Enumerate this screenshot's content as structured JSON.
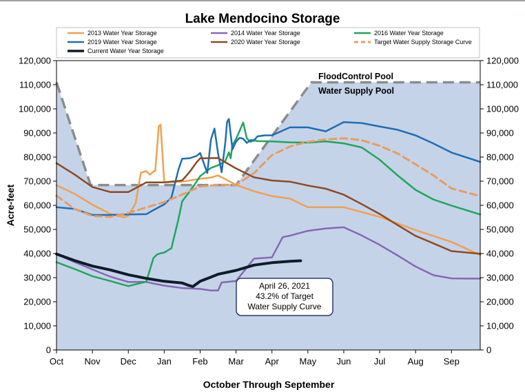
{
  "chart_data": {
    "type": "line",
    "title": "Lake Mendocino Storage",
    "xlabel": "October Through September",
    "ylabel": "Acre-feet",
    "x_categories": [
      "Oct",
      "Nov",
      "Dec",
      "Jan",
      "Feb",
      "Mar",
      "Apr",
      "May",
      "Jun",
      "Jul",
      "Aug",
      "Sep"
    ],
    "x_range_months": [
      0,
      11.8
    ],
    "ylim": [
      0,
      120000
    ],
    "yticks": [
      0,
      10000,
      20000,
      30000,
      40000,
      50000,
      60000,
      70000,
      80000,
      90000,
      100000,
      110000,
      120000
    ],
    "ytick_labels": [
      "0",
      "10,000",
      "20,000",
      "30,000",
      "40,000",
      "50,000",
      "60,000",
      "70,000",
      "80,000",
      "90,000",
      "100,000",
      "110,000",
      "120,000"
    ],
    "secondary_y_axis": true,
    "grid": false,
    "legend_position": "top",
    "pool_labels": {
      "flood_control": "FloodControl Pool",
      "water_supply": "Water Supply Pool"
    },
    "pool": {
      "fill_color": "#c5d3e8",
      "x_months": [
        0,
        0.95,
        5.0,
        7.1,
        11.8
      ],
      "y": [
        111000,
        68400,
        68400,
        111000,
        111000
      ]
    },
    "annotation": {
      "lines": [
        "April 26, 2021",
        "43.2% of Target",
        "Water Supply Curve"
      ]
    },
    "series": [
      {
        "name": "2013 Water Year Storage",
        "color": "#f0a050",
        "dash": false,
        "width": 2.5,
        "x_months": [
          0,
          0.5,
          1,
          1.5,
          1.8,
          1.9,
          2,
          2.2,
          2.35,
          2.5,
          2.6,
          2.7,
          2.75,
          2.85,
          2.9,
          3,
          3.5,
          4,
          4.3,
          4.5,
          5,
          5.5,
          6,
          6.5,
          7,
          8,
          8.5,
          9,
          10,
          11,
          11.8
        ],
        "y": [
          68300,
          64800,
          60300,
          56400,
          55300,
          55000,
          55700,
          60700,
          73500,
          74200,
          72700,
          74000,
          74300,
          92800,
          93500,
          69500,
          69800,
          71000,
          71500,
          72400,
          68500,
          65800,
          63800,
          62800,
          59200,
          59200,
          57200,
          55200,
          49700,
          44800,
          39400
        ]
      },
      {
        "name": "2014 Water Year Storage",
        "color": "#8567b5",
        "dash": false,
        "width": 2.5,
        "x_months": [
          0,
          0.5,
          1,
          1.5,
          2,
          2.5,
          3,
          3.5,
          4,
          4.3,
          4.5,
          4.6,
          5,
          5.5,
          6,
          6.3,
          6.5,
          7,
          7.5,
          8,
          8.5,
          9,
          9.5,
          10,
          10.5,
          11,
          11.5,
          11.8
        ],
        "y": [
          39800,
          36500,
          33400,
          30400,
          28200,
          28200,
          26700,
          25700,
          25300,
          24700,
          24700,
          28000,
          28600,
          37900,
          38400,
          46800,
          47400,
          49400,
          50400,
          50900,
          47500,
          43600,
          39200,
          34600,
          31000,
          29700,
          29600,
          29600
        ]
      },
      {
        "name": "2016 Water Year Storage",
        "color": "#1ea65a",
        "dash": false,
        "width": 2.5,
        "x_months": [
          0,
          0.5,
          1,
          1.5,
          2,
          2.5,
          2.7,
          2.8,
          2.9,
          3,
          3.2,
          3.4,
          3.5,
          3.7,
          3.9,
          4,
          4.3,
          4.5,
          4.7,
          4.8,
          4.85,
          4.9,
          5,
          5.2,
          5.3,
          5.4,
          5.5,
          5.6,
          6,
          6.5,
          7,
          7.5,
          8,
          8.5,
          9,
          9.5,
          10,
          10.5,
          11,
          11.8
        ],
        "y": [
          36400,
          33600,
          30600,
          28600,
          26500,
          28300,
          38100,
          39600,
          40100,
          40400,
          42200,
          54500,
          61600,
          65600,
          69800,
          72100,
          75500,
          76600,
          78300,
          82000,
          79500,
          85000,
          87500,
          94300,
          87800,
          86300,
          86900,
          86600,
          86500,
          86100,
          86000,
          86500,
          85700,
          84000,
          78900,
          72400,
          66400,
          62400,
          59900,
          56200
        ]
      },
      {
        "name": "2019 Water Year Storage",
        "color": "#1d6db5",
        "dash": false,
        "width": 2.5,
        "x_months": [
          0,
          0.5,
          1,
          1.5,
          2,
          2.5,
          2.7,
          3,
          3.2,
          3.4,
          3.5,
          3.7,
          3.9,
          4,
          4.2,
          4.3,
          4.4,
          4.5,
          4.6,
          4.7,
          4.75,
          4.8,
          4.9,
          5,
          5.1,
          5.2,
          5.3,
          5.4,
          5.5,
          5.6,
          5.8,
          6,
          6.5,
          7,
          7.5,
          8,
          8.5,
          9,
          9.5,
          10,
          10.5,
          11,
          11.8
        ],
        "y": [
          59200,
          58500,
          56000,
          56000,
          56200,
          56300,
          58000,
          60400,
          63200,
          75000,
          79300,
          79500,
          80500,
          81700,
          73400,
          87200,
          91800,
          81500,
          73700,
          86000,
          94600,
          95800,
          83200,
          86400,
          88000,
          87600,
          85900,
          87000,
          87000,
          88600,
          89000,
          89000,
          92300,
          92300,
          90700,
          94500,
          94100,
          92700,
          91300,
          89000,
          85600,
          81900,
          78000
        ]
      },
      {
        "name": "2020 Water Year Storage",
        "color": "#8a4a24",
        "dash": false,
        "width": 2.5,
        "x_months": [
          0,
          0.5,
          1,
          1.5,
          2,
          2.5,
          3,
          3.5,
          3.7,
          3.9,
          4,
          4.5,
          5,
          5.5,
          6,
          6.5,
          7,
          7.5,
          8,
          8.5,
          9,
          9.5,
          10,
          10.5,
          11,
          11.8
        ],
        "y": [
          77500,
          72800,
          67600,
          65500,
          65500,
          69500,
          69500,
          70300,
          73700,
          77800,
          79500,
          79600,
          75300,
          71600,
          70300,
          69800,
          68200,
          66900,
          64400,
          60500,
          56400,
          51800,
          47300,
          44200,
          41000,
          39900
        ]
      },
      {
        "name": "Target Water Supply Storage Curve",
        "color": "#e89c60",
        "dash": true,
        "width": 3,
        "x_months": [
          0,
          0.5,
          1,
          1.5,
          2,
          2.5,
          3,
          3.5,
          4,
          4.5,
          5,
          5.5,
          6,
          6.5,
          7,
          7.5,
          8,
          8.5,
          9,
          9.5,
          10,
          10.5,
          11,
          11.8
        ],
        "y": [
          64000,
          58500,
          55600,
          55200,
          56800,
          59100,
          61300,
          64500,
          67800,
          68500,
          68500,
          73300,
          80800,
          84400,
          86300,
          87300,
          87800,
          87000,
          84700,
          81500,
          77000,
          72400,
          67000,
          63800
        ]
      },
      {
        "name": "Current Water Year Storage",
        "color": "#0d1b2a",
        "dash": false,
        "width": 4,
        "x_months": [
          0,
          0.5,
          1,
          1.5,
          2,
          2.5,
          3,
          3.5,
          3.7,
          3.8,
          4,
          4.3,
          4.5,
          5,
          5.5,
          6,
          6.5,
          6.8
        ],
        "y": [
          39800,
          37100,
          34800,
          33200,
          31200,
          29700,
          28500,
          27800,
          26700,
          26300,
          28500,
          30200,
          31400,
          33000,
          35200,
          36200,
          36800,
          37000
        ]
      }
    ]
  }
}
